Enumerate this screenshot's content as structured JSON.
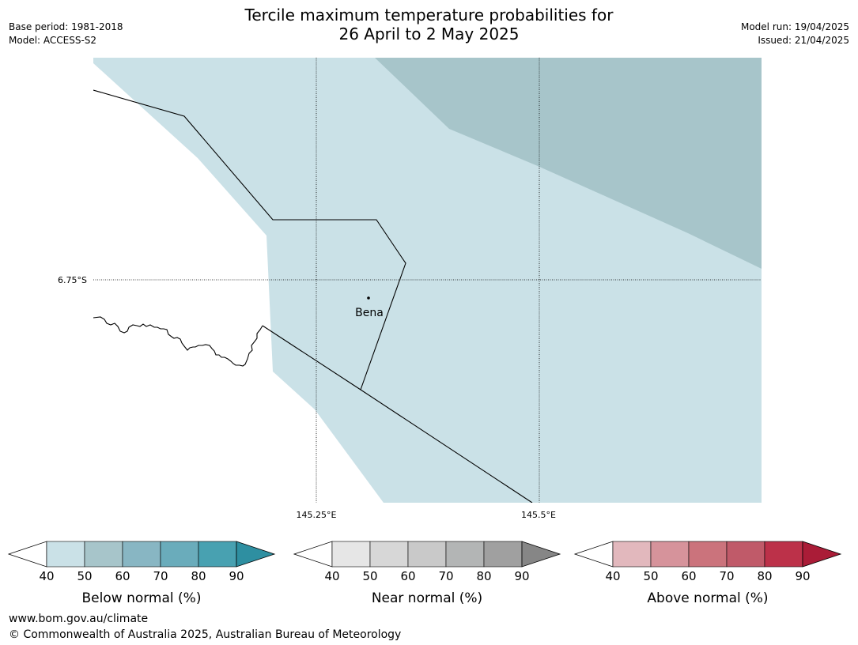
{
  "header": {
    "title_line1": "Tercile maximum temperature probabilities for",
    "title_line2": "26 April to 2 May 2025",
    "base_period": "Base period: 1981-2018",
    "model": "Model: ACCESS-S2",
    "model_run": "Model run: 19/04/2025",
    "issued": "Issued: 21/04/2025"
  },
  "map": {
    "latitude_label": "6.75°S",
    "longitude_labels": [
      "145.25°E",
      "145.5°E"
    ],
    "place_label": "Bena"
  },
  "legends": [
    {
      "title": "Below normal (%)",
      "ticks": [
        "40",
        "50",
        "60",
        "70",
        "80",
        "90"
      ],
      "colors": [
        "#cae1e7",
        "#a7c5ca",
        "#88b6c3",
        "#6aacbb",
        "#48a1b1",
        "#2e8fa1"
      ]
    },
    {
      "title": "Near normal (%)",
      "ticks": [
        "40",
        "50",
        "60",
        "70",
        "80",
        "90"
      ],
      "colors": [
        "#e6e6e6",
        "#d7d7d7",
        "#c9c9c9",
        "#b3b5b5",
        "#a0a0a0",
        "#868686"
      ]
    },
    {
      "title": "Above normal (%)",
      "ticks": [
        "40",
        "50",
        "60",
        "70",
        "80",
        "90"
      ],
      "colors": [
        "#e2b8bd",
        "#d6939b",
        "#cb737c",
        "#c05a69",
        "#bc3149",
        "#aa1c37"
      ]
    }
  ],
  "footer": {
    "website": "www.bom.gov.au/climate",
    "copyright": "© Commonwealth of Australia 2025, Australian Bureau of Meteorology"
  }
}
